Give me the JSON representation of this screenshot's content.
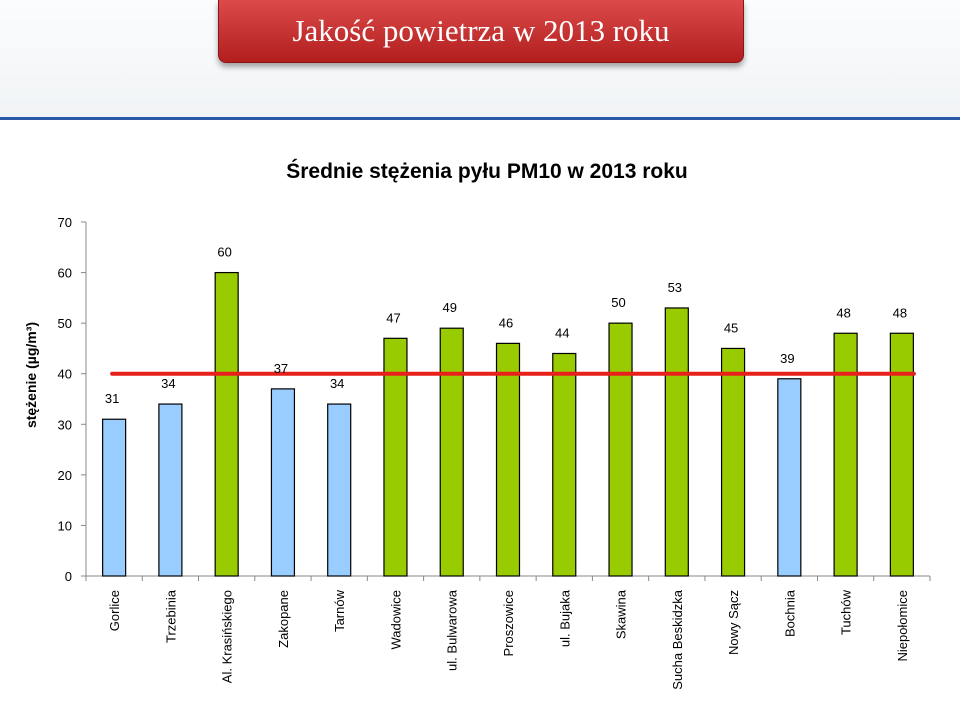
{
  "slide": {
    "title": "Jakość powietrza w 2013 roku",
    "accent_color": "#c0282a",
    "divider_color": "#2b59a8"
  },
  "chart_data": {
    "type": "bar",
    "title": "Średnie stężenia pyłu PM10 w 2013 roku",
    "xlabel": "",
    "ylabel": "stężenie (µg/m³)",
    "ylim": [
      0,
      70
    ],
    "yticks": [
      0,
      10,
      20,
      30,
      40,
      50,
      60,
      70
    ],
    "grid": false,
    "categories": [
      "Gorlice",
      "Trzebinia",
      "Al. Krasińskiego",
      "Zakopane",
      "Tarnów",
      "Wadowice",
      "ul. Bulwarowa",
      "Proszowice",
      "ul. Bujaka",
      "Skawina",
      "Sucha Beskidzka",
      "Nowy Sącz",
      "Bochnia",
      "Tuchów",
      "Niepołomice"
    ],
    "values": [
      31,
      34,
      60,
      37,
      34,
      47,
      49,
      46,
      44,
      50,
      53,
      45,
      39,
      48,
      48
    ],
    "value_labels": [
      "31",
      "34",
      "60",
      "37",
      "34",
      "47",
      "49",
      "46",
      "44",
      "50",
      "53",
      "45",
      "39",
      "48",
      "48"
    ],
    "below_limit_color": "#99ccff",
    "above_limit_color": "#99cc00",
    "reference_line": {
      "value": 40,
      "color": "#e8201c"
    }
  }
}
